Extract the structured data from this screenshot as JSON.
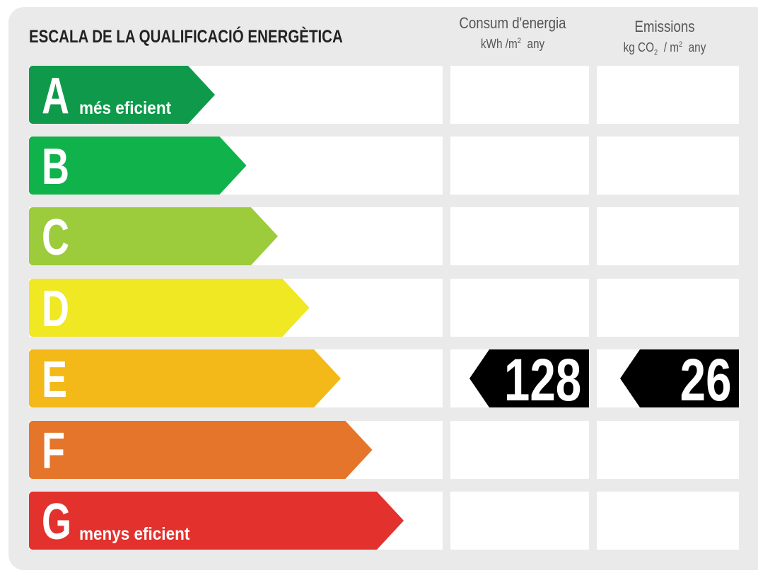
{
  "title": "ESCALA DE LA QUALIFICACIÓ ENERGÈTICA",
  "columns": {
    "energy": {
      "label": "Consum d'energia",
      "unit_a": "kWh /m",
      "unit_sup": "2",
      "unit_b": "  any"
    },
    "emissions": {
      "label": "Emissions",
      "unit_a": "kg CO",
      "unit_sub": "2",
      "unit_b": "  / m",
      "unit_sup": "2",
      "unit_c": "  any"
    }
  },
  "ratings": [
    {
      "letter": "A",
      "caption": "més eficient",
      "color": "#0e9a4a"
    },
    {
      "letter": "B",
      "caption": "",
      "color": "#10b24b"
    },
    {
      "letter": "C",
      "caption": "",
      "color": "#9ccb3b"
    },
    {
      "letter": "D",
      "caption": "",
      "color": "#efe822"
    },
    {
      "letter": "E",
      "caption": "",
      "color": "#f2b918"
    },
    {
      "letter": "F",
      "caption": "",
      "color": "#e4752a"
    },
    {
      "letter": "G",
      "caption": "menys eficient",
      "color": "#e3312d"
    }
  ],
  "result": {
    "rating": "E",
    "energy_value": "128",
    "emissions_value": "26"
  }
}
